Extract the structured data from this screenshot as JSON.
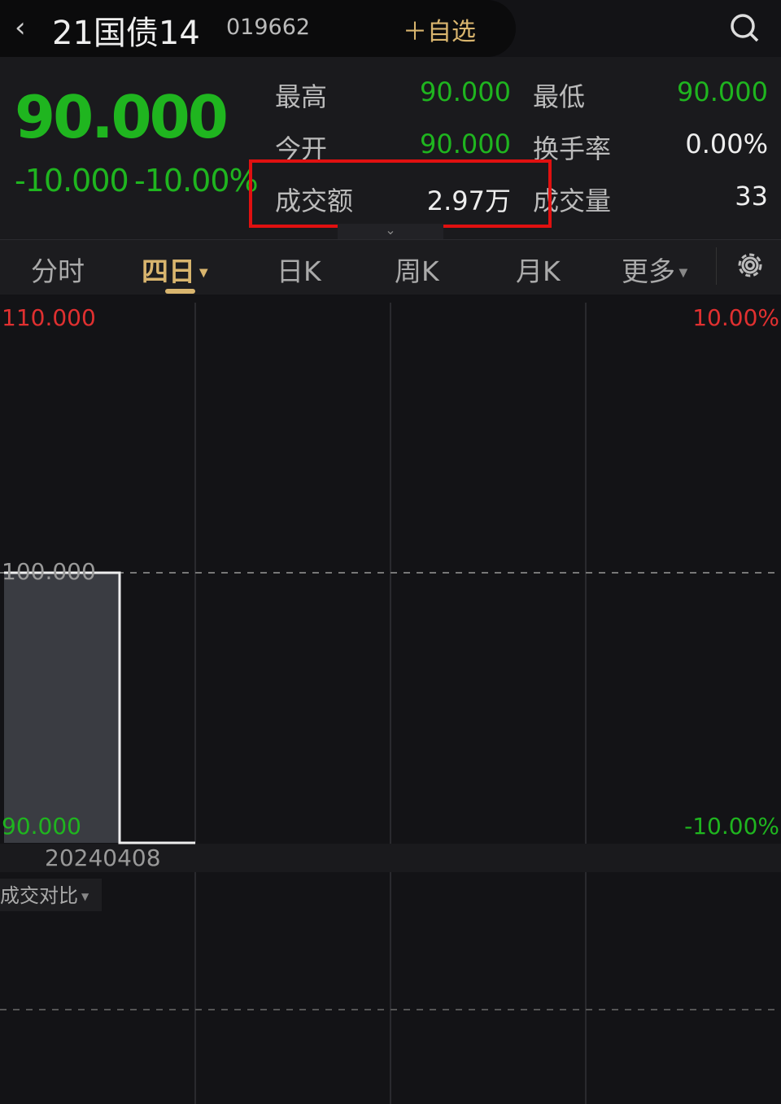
{
  "header": {
    "back_icon": "chevron-left-icon",
    "title": "21国债14",
    "code": "019662",
    "add_favorite": "＋自选",
    "search_icon": "search-icon"
  },
  "quote": {
    "price": "90.000",
    "change": "-10.000",
    "change_pct": "-10.00%",
    "stats": [
      {
        "label": "最高",
        "value": "90.000",
        "color": "green"
      },
      {
        "label": "最低",
        "value": "90.000",
        "color": "green"
      },
      {
        "label": "今开",
        "value": "90.000",
        "color": "green"
      },
      {
        "label": "换手率",
        "value": "0.00%",
        "color": "white"
      },
      {
        "label": "成交额",
        "value": "2.97万",
        "color": "white",
        "highlighted": true
      },
      {
        "label": "成交量",
        "value": "33",
        "color": "white"
      }
    ]
  },
  "tabs": [
    {
      "label": "分时"
    },
    {
      "label": "四日",
      "active": true,
      "dropdown": true
    },
    {
      "label": "日K"
    },
    {
      "label": "周K"
    },
    {
      "label": "月K"
    },
    {
      "label": "更多",
      "dropdown": true
    }
  ],
  "settings_icon": "gear-icon",
  "chart_data": {
    "type": "line",
    "ylim": [
      90,
      110
    ],
    "y_ticks_left": [
      "110.000",
      "100.000",
      "90.000"
    ],
    "y_ticks_right": [
      "10.00%",
      "-10.00%"
    ],
    "x_label": "20240408",
    "prev_close": 100,
    "series": [
      {
        "values": [
          100,
          100,
          90,
          90
        ]
      }
    ],
    "grid": true
  },
  "colors": {
    "up": "#e03030",
    "down": "#1fb51f",
    "accent": "#d9b56e"
  },
  "volume_panel": {
    "selector": "成交对比"
  }
}
